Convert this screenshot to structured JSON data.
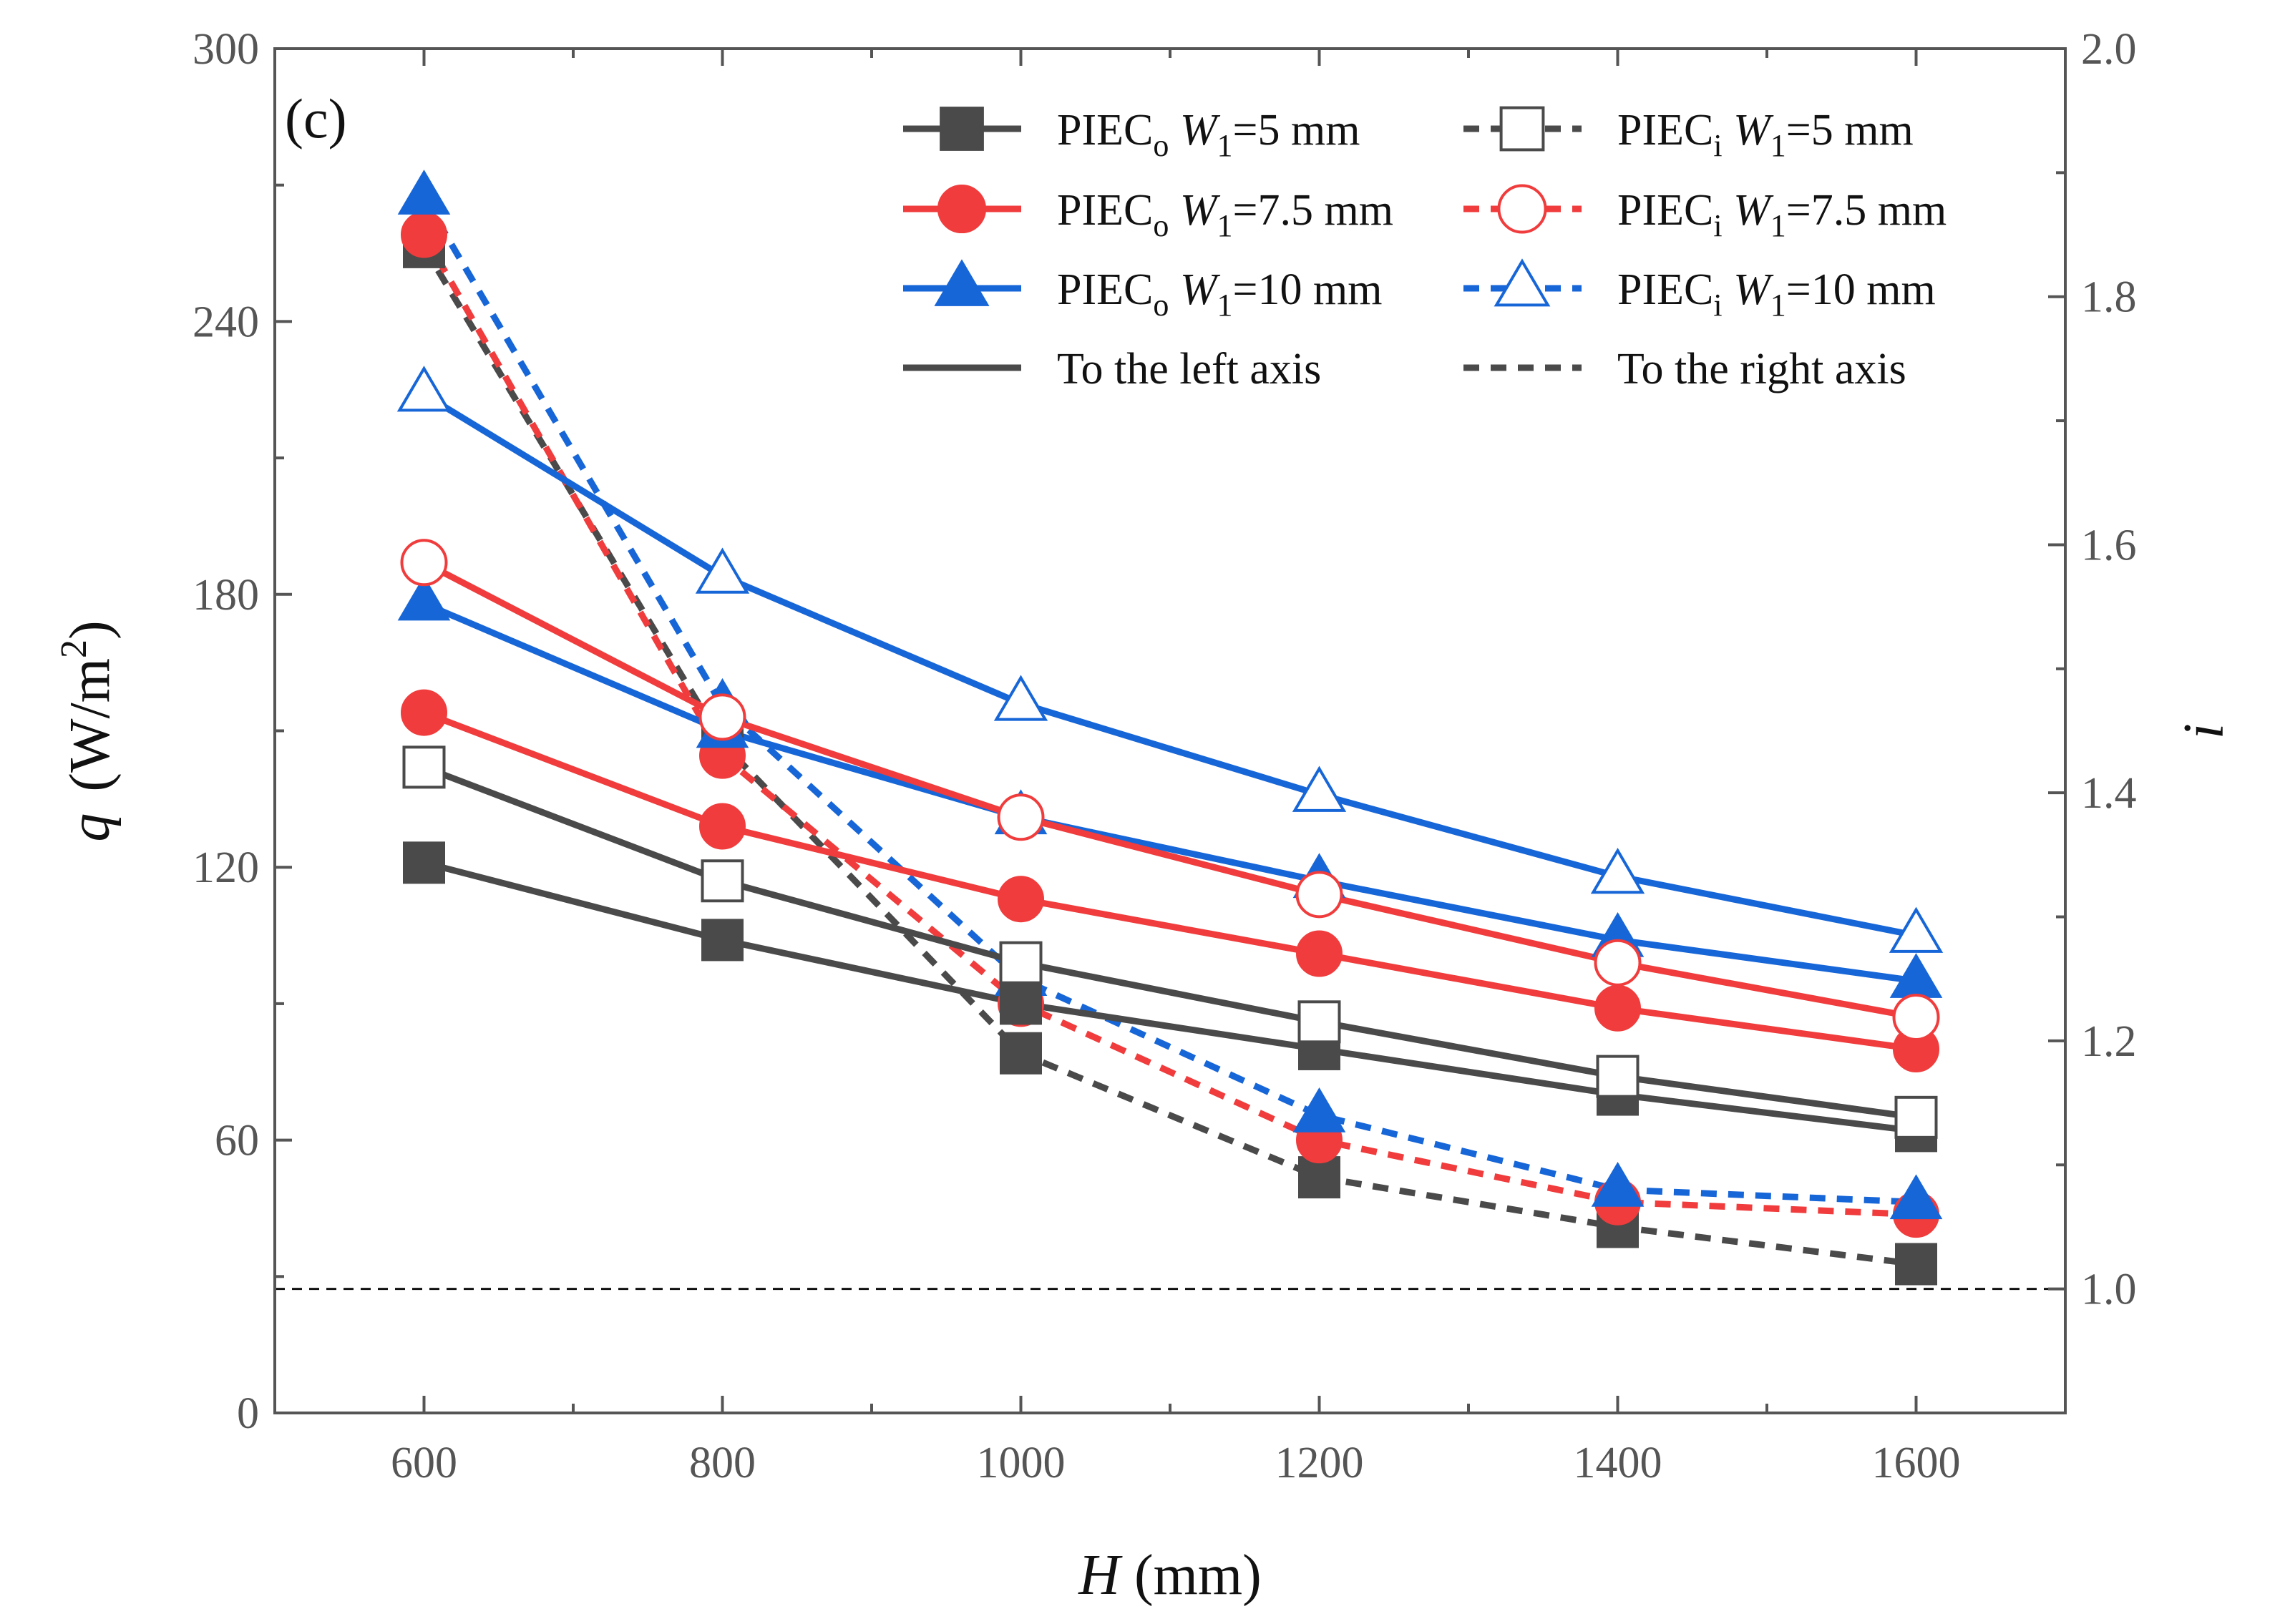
{
  "chart_data": {
    "type": "line",
    "panel_label": "(c)",
    "x": [
      600,
      800,
      1000,
      1200,
      1400,
      1600
    ],
    "xlim": [
      500,
      1700
    ],
    "x_ticks": [
      "600",
      "800",
      "1000",
      "1200",
      "1400",
      "1600"
    ],
    "xlabel": {
      "var": "H",
      "unit": " (mm)"
    },
    "ylabel_left": {
      "var": "q",
      "unit": "(W/m",
      "sup": "2",
      "close": ")"
    },
    "ylim_left": [
      0,
      300
    ],
    "left_ticks": [
      "0",
      "60",
      "120",
      "180",
      "240",
      "300"
    ],
    "ylabel_right": "i",
    "ylim_right": [
      0.9,
      2.0
    ],
    "right_ticks": [
      "1.0",
      "1.2",
      "1.4",
      "1.6",
      "1.8",
      "2.0"
    ],
    "reference_line": {
      "axis": "right",
      "value": 1.0
    },
    "colors": {
      "black": "#4a4a4a",
      "red": "#f03c3c",
      "blue": "#1766d8"
    },
    "series": [
      {
        "name": "PIEC_o W1=5 mm left",
        "axis": "left",
        "color": "black",
        "dash": false,
        "marker": "square",
        "filled": true,
        "values": [
          121,
          104,
          90,
          80,
          70,
          62
        ]
      },
      {
        "name": "PIEC_o W1=5 mm right",
        "axis": "right",
        "color": "black",
        "dash": true,
        "marker": "square",
        "filled": true,
        "values": [
          1.84,
          1.44,
          1.19,
          1.09,
          1.05,
          1.02
        ]
      },
      {
        "name": "PIEC_o W1=7.5 mm left",
        "axis": "left",
        "color": "red",
        "dash": false,
        "marker": "circle",
        "filled": true,
        "values": [
          154,
          129,
          113,
          101,
          89,
          80
        ]
      },
      {
        "name": "PIEC_o W1=7.5 mm right",
        "axis": "right",
        "color": "red",
        "dash": true,
        "marker": "circle",
        "filled": true,
        "values": [
          1.85,
          1.43,
          1.23,
          1.12,
          1.07,
          1.06
        ]
      },
      {
        "name": "PIEC_o W1=10 mm left",
        "axis": "left",
        "color": "blue",
        "dash": false,
        "marker": "triangle",
        "filled": true,
        "values": [
          178,
          150,
          131,
          117,
          104,
          95
        ]
      },
      {
        "name": "PIEC_o W1=10 mm right",
        "axis": "right",
        "color": "blue",
        "dash": true,
        "marker": "triangle",
        "filled": true,
        "values": [
          1.88,
          1.47,
          1.25,
          1.14,
          1.08,
          1.07
        ]
      },
      {
        "name": "PIEC_i W1=5 mm",
        "axis": "left",
        "color": "black",
        "dash": false,
        "marker": "square",
        "filled": false,
        "values": [
          142,
          117,
          99,
          86,
          74,
          65
        ]
      },
      {
        "name": "PIEC_i W1=7.5 mm",
        "axis": "left",
        "color": "red",
        "dash": false,
        "marker": "circle",
        "filled": false,
        "values": [
          187,
          153,
          131,
          114,
          99,
          87
        ]
      },
      {
        "name": "PIEC_i W1=10 mm",
        "axis": "left",
        "color": "blue",
        "dash": false,
        "marker": "triangle",
        "filled": false,
        "values": [
          224,
          184,
          156,
          136,
          118,
          105
        ]
      }
    ],
    "legend": {
      "position": "top-right",
      "entries": [
        {
          "main": "PIEC",
          "sub": "o",
          "w": "W",
          "wsub": "1",
          "val": "=5 mm",
          "color": "black",
          "marker": "square",
          "filled": true,
          "dash": false
        },
        {
          "main": "PIEC",
          "sub": "i",
          "w": "W",
          "wsub": "1",
          "val": "=5 mm",
          "color": "black",
          "marker": "square",
          "filled": false,
          "dash": true
        },
        {
          "main": "PIEC",
          "sub": "o",
          "w": "W",
          "wsub": "1",
          "val": "=7.5 mm",
          "color": "red",
          "marker": "circle",
          "filled": true,
          "dash": false
        },
        {
          "main": "PIEC",
          "sub": "i",
          "w": "W",
          "wsub": "1",
          "val": "=7.5 mm",
          "color": "red",
          "marker": "circle",
          "filled": false,
          "dash": true
        },
        {
          "main": "PIEC",
          "sub": "o",
          "w": "W",
          "wsub": "1",
          "val": "=10 mm",
          "color": "blue",
          "marker": "triangle",
          "filled": true,
          "dash": false
        },
        {
          "main": "PIEC",
          "sub": "i",
          "w": "W",
          "wsub": "1",
          "val": "=10 mm",
          "color": "blue",
          "marker": "triangle",
          "filled": false,
          "dash": true
        },
        {
          "text": "To the left axis",
          "color": "black",
          "dash": false
        },
        {
          "text": "To the right axis",
          "color": "black",
          "dash": true
        }
      ]
    }
  }
}
